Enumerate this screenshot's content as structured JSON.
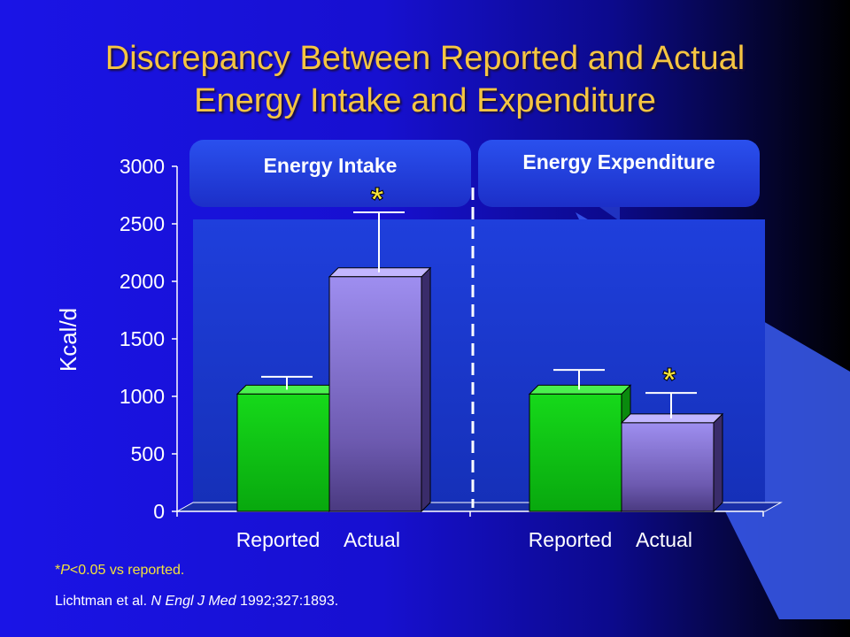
{
  "slide": {
    "title_line1": "Discrepancy Between Reported and Actual",
    "title_line2": "Energy Intake and Expenditure",
    "footnote_prefix": "*",
    "footnote_p": "P",
    "footnote_rest": "<0.05 vs reported.",
    "citation_authors": "Lichtman et al. ",
    "citation_journal": "N Engl J Med",
    "citation_rest": " 1992;327:1893."
  },
  "colors": {
    "title": "#f5c542",
    "background": "#1a14e6",
    "reported_bar": "#16d91a",
    "actual_bar": "#9e8ef0",
    "panel_header": "#1f3ce0",
    "footnote": "#f3e33a"
  },
  "chart_data": {
    "type": "bar",
    "ylabel": "Kcal/d",
    "ylim": [
      0,
      3000
    ],
    "yticks": [
      "0",
      "500",
      "1000",
      "1500",
      "2000",
      "2500",
      "3000"
    ],
    "grid": false,
    "groups": [
      {
        "title": "Energy Intake",
        "categories": [
          "Reported",
          "Actual"
        ],
        "values": [
          1020,
          2040
        ],
        "error_upper": [
          1170,
          2600
        ],
        "significant": [
          false,
          true
        ]
      },
      {
        "title": "Energy Expenditure",
        "categories": [
          "Reported",
          "Actual"
        ],
        "values": [
          1020,
          770
        ],
        "error_upper": [
          1230,
          1030
        ],
        "significant": [
          false,
          true
        ]
      }
    ],
    "significance_marker": "*"
  }
}
